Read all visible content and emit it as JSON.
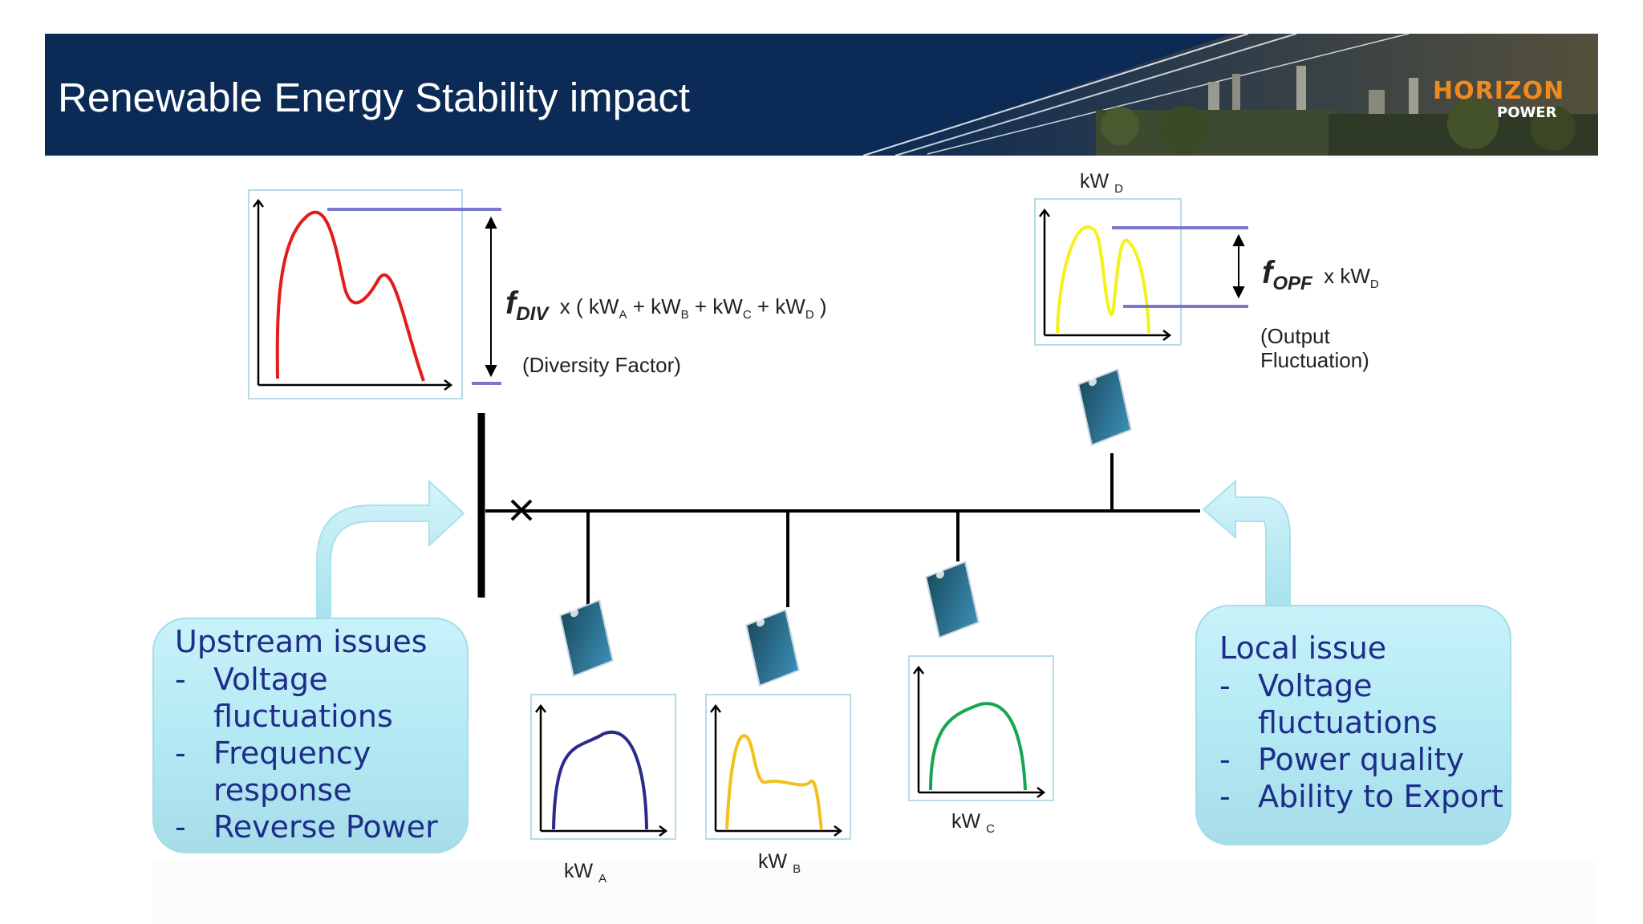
{
  "header": {
    "title": "Renewable Energy Stability impact",
    "logo_main": "HORIZON",
    "logo_sub": "POWER"
  },
  "diagram": {
    "kw_a": {
      "base": "kW",
      "sub": "A"
    },
    "kw_b": {
      "base": "kW",
      "sub": "B"
    },
    "kw_c": {
      "base": "kW",
      "sub": "C"
    },
    "kw_d": {
      "base": "kW",
      "sub": "D"
    },
    "fdiv": {
      "symbol": "f",
      "symbol_sub": "DIV",
      "formula_prefix": "x ( kW",
      "a": "A",
      "plus1": " + kW",
      "b": "B",
      "plus2": " + kW",
      "c": "C",
      "plus3": " + kW",
      "d": "D",
      "formula_suffix": " )",
      "caption": "(Diversity Factor)"
    },
    "fopf": {
      "symbol": "f",
      "symbol_sub": "OPF",
      "formula_prefix": "x  kW",
      "d": "D",
      "caption_line1": "(Output",
      "caption_line2": "Fluctuation)"
    }
  },
  "upstream": {
    "title": "Upstream issues",
    "items": [
      {
        "dash": "-",
        "line1": "Voltage",
        "line2": "fluctuations"
      },
      {
        "dash": "-",
        "line1": "Frequency",
        "line2": "response"
      },
      {
        "dash": "-",
        "line1": "Reverse Power"
      }
    ]
  },
  "local": {
    "title": "Local issue",
    "items": [
      {
        "dash": "-",
        "line1": "Voltage",
        "line2": "fluctuations"
      },
      {
        "dash": "-",
        "line1": "Power quality"
      },
      {
        "dash": "-",
        "line1": "Ability to Export"
      }
    ]
  },
  "colors": {
    "banner": "#0b2a55",
    "curve_aggregate": "#e31b1b",
    "curve_a": "#2b2a8a",
    "curve_b": "#f2c21a",
    "curve_c": "#16a651",
    "curve_d": "#f5f21a",
    "band_lines": "#7a77cc",
    "issue_text": "#1f2d8a",
    "issue_fill": "#b8ecf5"
  }
}
